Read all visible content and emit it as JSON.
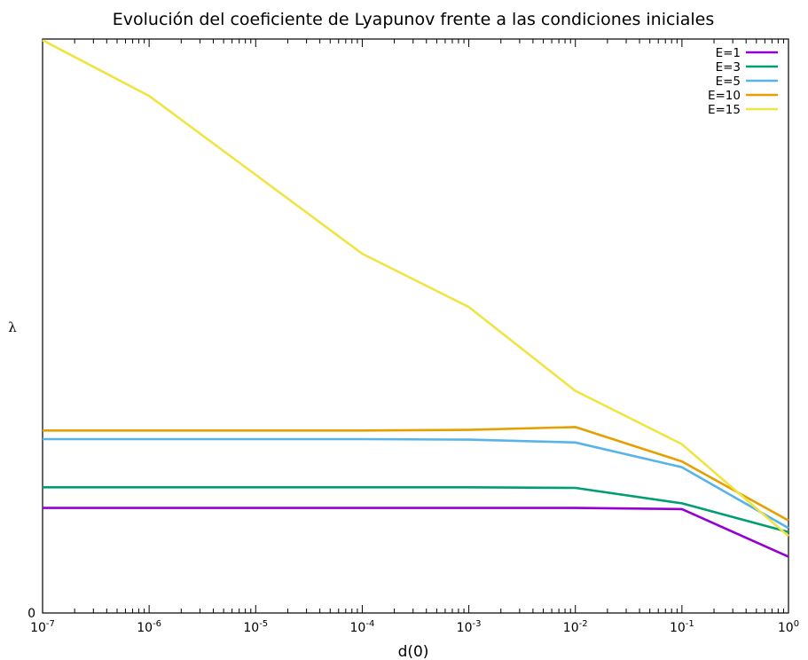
{
  "chart_data": {
    "type": "line",
    "title": "Evolución del coeficiente de Lyapunov frente a las condiciones iniciales",
    "xlabel": "d(0)",
    "ylabel": "λ",
    "xscale": "log",
    "x_exponents": [
      -7,
      -6,
      -5,
      -4,
      -3,
      -2,
      -1,
      0
    ],
    "y_tick_labels": [
      "0"
    ],
    "ylim": [
      0,
      1.0
    ],
    "legend_position": "top-right",
    "grid": false,
    "x": [
      1e-07,
      1e-06,
      0.0001,
      0.001,
      0.01,
      0.1,
      1
    ],
    "series": [
      {
        "name": "E=1",
        "color": "#9400d3",
        "values": [
          0.183,
          0.183,
          0.183,
          0.183,
          0.183,
          0.181,
          0.098
        ]
      },
      {
        "name": "E=3",
        "color": "#009e73",
        "values": [
          0.219,
          0.219,
          0.219,
          0.219,
          0.218,
          0.191,
          0.141
        ]
      },
      {
        "name": "E=5",
        "color": "#56b4e9",
        "values": [
          0.303,
          0.303,
          0.303,
          0.302,
          0.297,
          0.254,
          0.148
        ]
      },
      {
        "name": "E=10",
        "color": "#e69f00",
        "values": [
          0.318,
          0.318,
          0.318,
          0.319,
          0.324,
          0.264,
          0.161
        ]
      },
      {
        "name": "E=15",
        "color": "#f0e442",
        "values": [
          0.998,
          0.901,
          0.626,
          0.533,
          0.387,
          0.294,
          0.134
        ]
      }
    ]
  }
}
